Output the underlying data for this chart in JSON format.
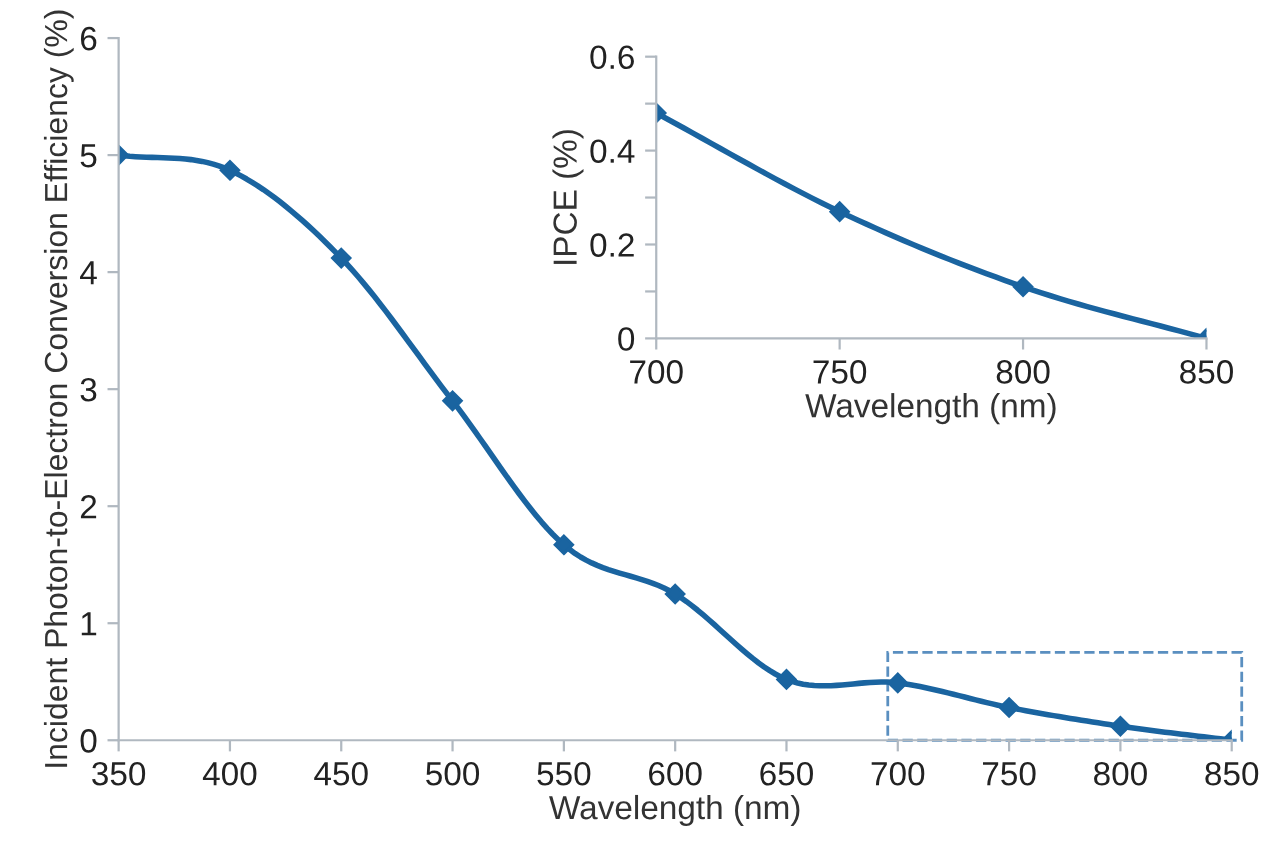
{
  "chart_data": [
    {
      "type": "line",
      "xlabel": "Wavelength (nm)",
      "ylabel": "Incident Photon-to-Electron Conversion Efficiency (%)",
      "x": [
        350,
        400,
        450,
        500,
        550,
        600,
        650,
        700,
        750,
        800,
        850
      ],
      "series": [
        {
          "color": "#1a64a0",
          "values": [
            5.0,
            4.87,
            4.12,
            2.9,
            1.67,
            1.25,
            0.52,
            0.49,
            0.28,
            0.12,
            0.0
          ]
        }
      ],
      "xlim": [
        350,
        850
      ],
      "ylim": [
        0,
        6
      ],
      "xticks": [
        350,
        400,
        450,
        500,
        550,
        600,
        650,
        700,
        750,
        800,
        850
      ],
      "yticks": [
        0,
        1,
        2,
        3,
        4,
        5,
        6
      ],
      "marker": "diamond",
      "line_style": "solid",
      "grid": false,
      "legend": false
    },
    {
      "type": "line",
      "xlabel": "Wavelength (nm)",
      "ylabel": "IPCE (%)",
      "x": [
        700,
        750,
        800,
        850
      ],
      "series": [
        {
          "color": "#1a64a0",
          "values": [
            0.48,
            0.27,
            0.11,
            0.0
          ]
        }
      ],
      "xlim": [
        700,
        850
      ],
      "ylim": [
        0,
        0.6
      ],
      "xticks": [
        700,
        750,
        800,
        850
      ],
      "yticks": [
        0,
        {
          "value": 0.1,
          "label": null
        },
        0.2,
        {
          "value": 0.3,
          "label": null
        },
        0.4,
        {
          "value": 0.5,
          "label": null
        },
        0.6
      ],
      "marker": "diamond",
      "line_style": "solid",
      "grid": false,
      "legend": false
    }
  ]
}
